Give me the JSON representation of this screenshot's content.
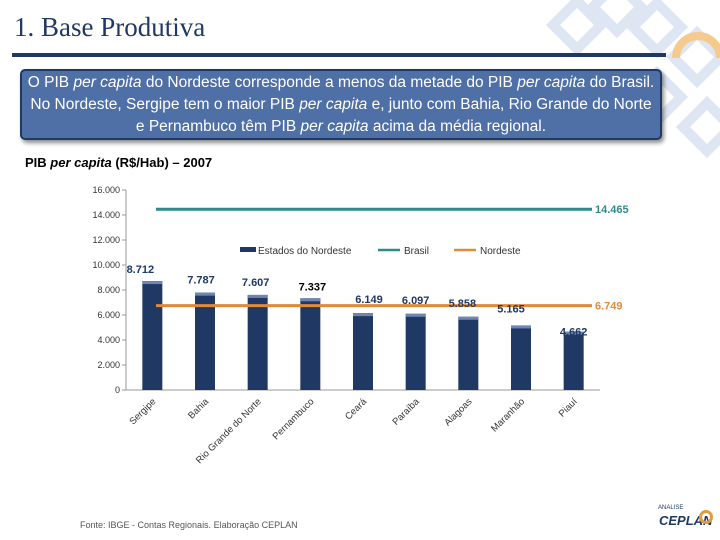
{
  "header": {
    "title": "1. Base Produtiva"
  },
  "callout": {
    "part1": "O PIB ",
    "part2": "per capita",
    "part3": " do Nordeste corresponde a menos da metade do PIB ",
    "part4": "per capita",
    "part5": " do Brasil. No Nordeste, Sergipe tem o maior PIB ",
    "part6": "per capita",
    "part7": " e, junto com Bahia, Rio Grande do Norte e Pernambuco têm PIB ",
    "part8": "per capita",
    "part9": " acima da média regional."
  },
  "subtitle": {
    "prefix": "PIB ",
    "italic": "per capita",
    "suffix": " (R$/Hab) – 2007"
  },
  "footer": {
    "source": "Fonte: IBGE - Contas Regionais. Elaboração CEPLAN"
  },
  "logo": {
    "small": "ANALISE",
    "text": "CEPLAN"
  },
  "colors": {
    "bar": "#1f3864",
    "brasil": "#2e8b88",
    "nordeste": "#e08a3a",
    "title": "#1f3864",
    "callout_bg": "#4f6fa7"
  },
  "chart_data": {
    "type": "bar",
    "title": "PIB per capita (R$/Hab) – 2007",
    "categories": [
      "Sergipe",
      "Bahia",
      "Rio Grande do Norte",
      "Pernambuco",
      "Ceará",
      "Paraíba",
      "Alagoas",
      "Maranhão",
      "Piauí"
    ],
    "series": [
      {
        "name": "Estados do Nordeste",
        "values": [
          8712,
          7787,
          7607,
          7337,
          6149,
          6097,
          5858,
          5165,
          4662
        ],
        "labels": [
          "8.712",
          "7.787",
          "7.607",
          "7.337",
          "6.149",
          "6.097",
          "5.858",
          "5.165",
          "4.662"
        ]
      }
    ],
    "reference_lines": [
      {
        "name": "Brasil",
        "value": 14465,
        "label": "14.465"
      },
      {
        "name": "Nordeste",
        "value": 6749,
        "label": "6.749"
      }
    ],
    "legend": [
      "Estados do Nordeste",
      "Brasil",
      "Nordeste"
    ],
    "yticks": [
      0,
      2000,
      4000,
      6000,
      8000,
      10000,
      12000,
      14000,
      16000
    ],
    "ytick_labels": [
      "0",
      "2.000",
      "4.000",
      "6.000",
      "8.000",
      "10.000",
      "12.000",
      "14.000",
      "16.000"
    ],
    "ylim": [
      0,
      16000
    ],
    "xlabel": "",
    "ylabel": ""
  }
}
